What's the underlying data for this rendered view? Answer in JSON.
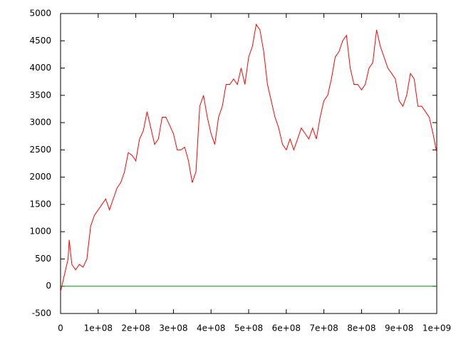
{
  "chart_data": {
    "type": "line",
    "x": [
      0,
      10000000,
      20000000,
      23000000,
      30000000,
      40000000,
      50000000,
      60000000,
      70000000,
      80000000,
      90000000,
      100000000,
      110000000,
      120000000,
      130000000,
      140000000,
      150000000,
      160000000,
      170000000,
      180000000,
      190000000,
      200000000,
      210000000,
      220000000,
      230000000,
      240000000,
      250000000,
      260000000,
      270000000,
      280000000,
      290000000,
      300000000,
      310000000,
      320000000,
      330000000,
      340000000,
      350000000,
      360000000,
      370000000,
      380000000,
      390000000,
      400000000,
      410000000,
      420000000,
      430000000,
      440000000,
      450000000,
      460000000,
      470000000,
      480000000,
      490000000,
      500000000,
      510000000,
      520000000,
      530000000,
      540000000,
      550000000,
      560000000,
      570000000,
      580000000,
      590000000,
      600000000,
      610000000,
      620000000,
      630000000,
      640000000,
      650000000,
      660000000,
      670000000,
      680000000,
      690000000,
      700000000,
      710000000,
      720000000,
      730000000,
      740000000,
      750000000,
      760000000,
      770000000,
      780000000,
      790000000,
      800000000,
      810000000,
      820000000,
      830000000,
      840000000,
      850000000,
      860000000,
      870000000,
      880000000,
      890000000,
      900000000,
      910000000,
      920000000,
      930000000,
      940000000,
      950000000,
      960000000,
      970000000,
      980000000,
      990000000,
      1000000000
    ],
    "series": [
      {
        "color": "#ff0000",
        "values": [
          -100,
          200,
          500,
          850,
          400,
          300,
          400,
          350,
          500,
          1100,
          1300,
          1400,
          1500,
          1600,
          1400,
          1600,
          1800,
          1900,
          2100,
          2450,
          2400,
          2300,
          2700,
          2850,
          3200,
          2900,
          2600,
          2700,
          3100,
          3100,
          2950,
          2800,
          2500,
          2500,
          2550,
          2300,
          1900,
          2100,
          3300,
          3500,
          3100,
          2800,
          2600,
          3100,
          3300,
          3700,
          3700,
          3800,
          3700,
          4000,
          3700,
          4200,
          4400,
          4800,
          4700,
          4300,
          3700,
          3400,
          3100,
          2900,
          2600,
          2500,
          2700,
          2500,
          2700,
          2900,
          2800,
          2700,
          2900,
          2700,
          3100,
          3400,
          3500,
          3800,
          4200,
          4300,
          4500,
          4600,
          4000,
          3700,
          3700,
          3600,
          3700,
          4000,
          4100,
          4700,
          4400,
          4200,
          4000,
          3900,
          3800,
          3400,
          3300,
          3500,
          3900,
          3800,
          3300,
          3300,
          3200,
          3100,
          2800,
          2450
        ]
      },
      {
        "color": "#00a000",
        "x": [
          0,
          1000000000
        ],
        "values": [
          0,
          0
        ]
      }
    ],
    "xlim": [
      0,
      1000000000
    ],
    "xticks": [
      0,
      {
        "value": 100000000,
        "label": "1e+08"
      },
      {
        "value": 200000000,
        "label": "2e+08"
      },
      {
        "value": 300000000,
        "label": "3e+08"
      },
      {
        "value": 400000000,
        "label": "4e+08"
      },
      {
        "value": 500000000,
        "label": "5e+08"
      },
      {
        "value": 600000000,
        "label": "6e+08"
      },
      {
        "value": 700000000,
        "label": "7e+08"
      },
      {
        "value": 800000000,
        "label": "8e+08"
      },
      {
        "value": 900000000,
        "label": "9e+08"
      },
      {
        "value": 1000000000,
        "label": "1e+09"
      }
    ],
    "ylim": [
      -500,
      5000
    ],
    "yticks": [
      -500,
      0,
      500,
      1000,
      1500,
      2000,
      2500,
      3000,
      3500,
      4000,
      4500,
      5000
    ]
  }
}
